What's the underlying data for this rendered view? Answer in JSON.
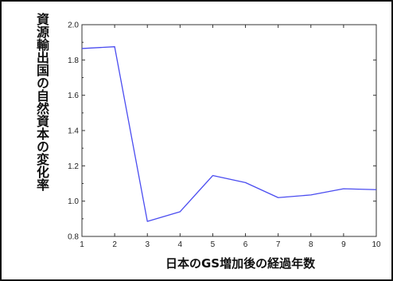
{
  "chart_data": {
    "type": "line",
    "title": "",
    "xlabel": "日本のGS増加後の経過年数",
    "ylabel": "資源輸出国の自然資本の変化率",
    "x": [
      1,
      2,
      3,
      4,
      5,
      6,
      7,
      8,
      9,
      10
    ],
    "series": [
      {
        "values": [
          1.865,
          1.875,
          0.885,
          0.94,
          1.145,
          1.105,
          1.02,
          1.035,
          1.07,
          1.065
        ]
      }
    ],
    "xticks": [
      "1",
      "2",
      "3",
      "4",
      "5",
      "6",
      "7",
      "8",
      "9",
      "10"
    ],
    "yticks": [
      "0.8",
      "1.0",
      "1.2",
      "1.4",
      "1.6",
      "1.8",
      "2.0"
    ],
    "xlim": [
      1,
      10
    ],
    "ylim": [
      0.8,
      2.0
    ],
    "grid": false,
    "line_color": "#4a4cf0"
  }
}
